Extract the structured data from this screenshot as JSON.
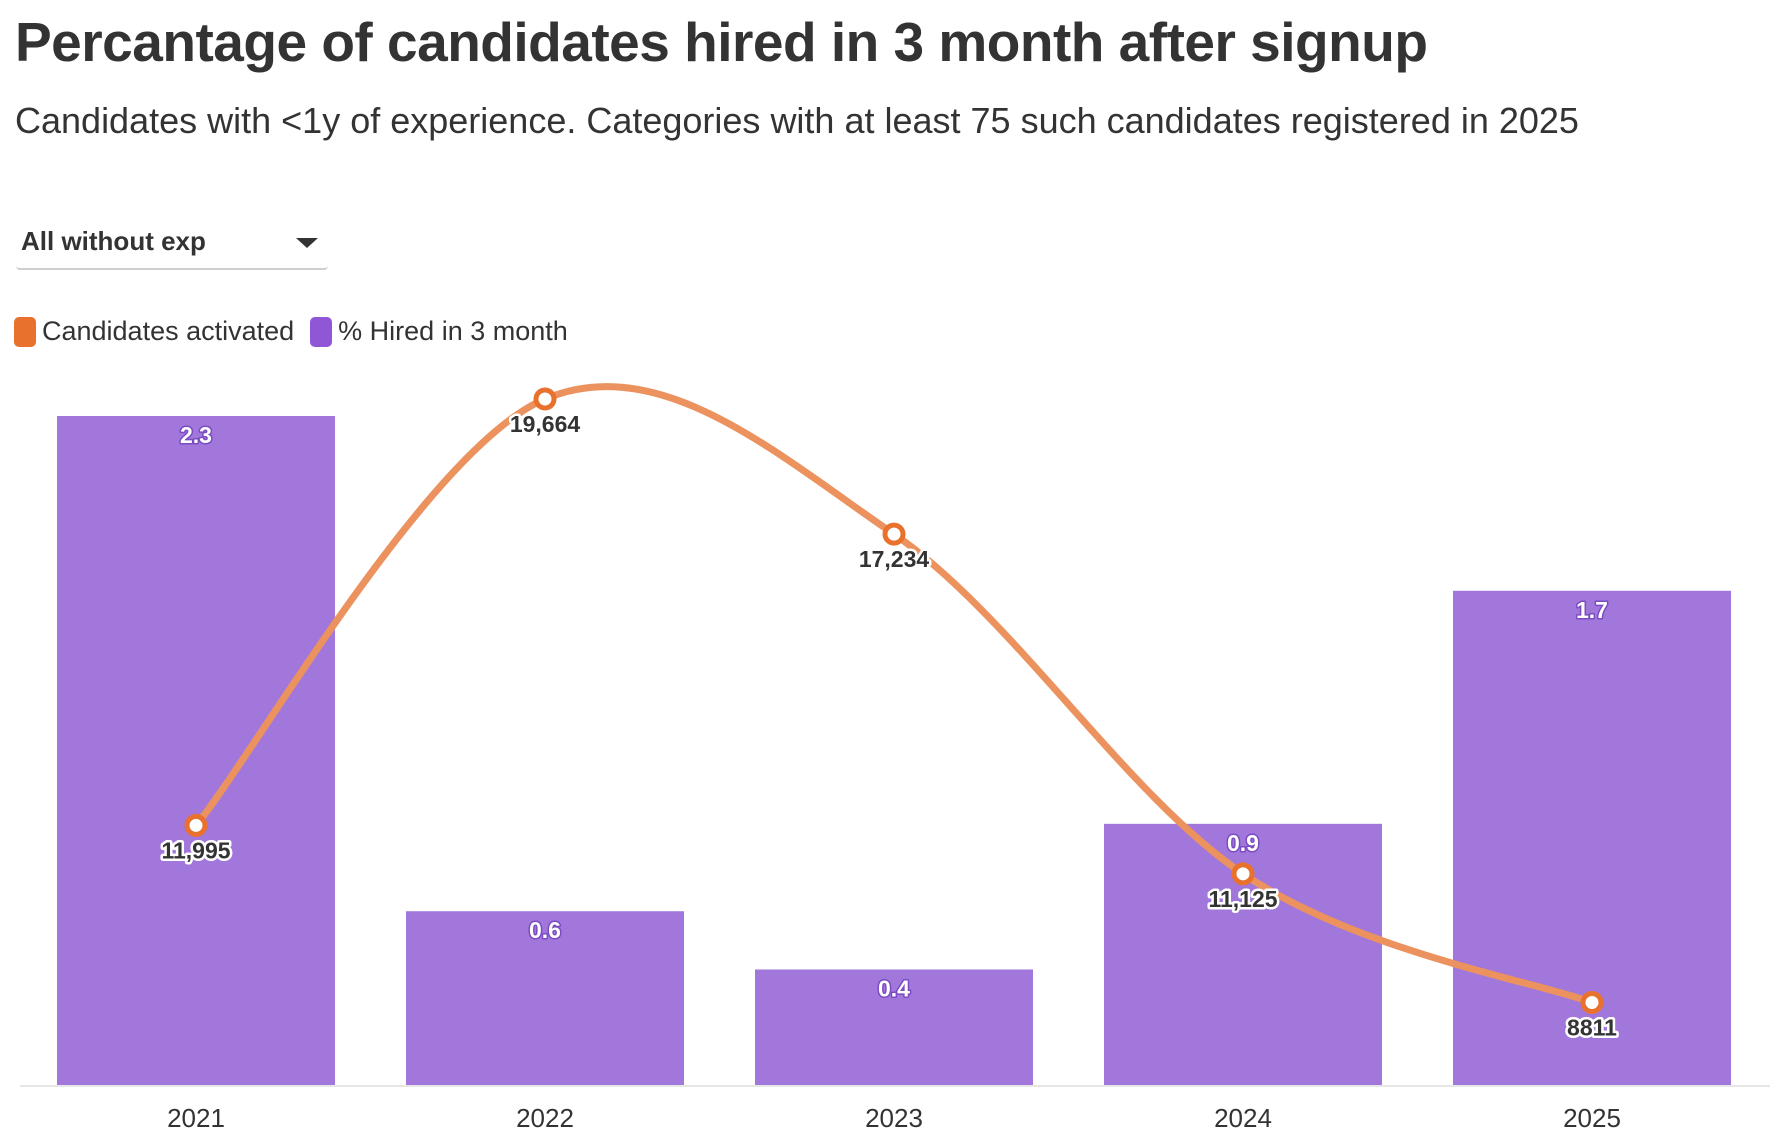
{
  "title": "Percantage of candidates hired in 3 month after signup",
  "subtitle": "Candidates with <1y of experience. Categories with at least 75 such candidates registered in 2025",
  "dropdown": {
    "selected": "All without exp"
  },
  "colors": {
    "bar": "#a277dc",
    "line": "#ec925e",
    "line_marker": "#e8722d",
    "axis": "#e6e6e6",
    "text": "#333333"
  },
  "chart_data": {
    "type": "bar",
    "categories": [
      "2021",
      "2022",
      "2023",
      "2024",
      "2025"
    ],
    "series": [
      {
        "name": "% Hired in 3 month",
        "type": "bar",
        "axis": "left",
        "values": [
          2.3,
          0.6,
          0.4,
          0.9,
          1.7
        ],
        "labels": [
          "2.3",
          "0.6",
          "0.4",
          "0.9",
          "1.7"
        ]
      },
      {
        "name": "Candidates activated",
        "type": "line",
        "smooth": true,
        "axis": "right",
        "values": [
          11995,
          19664,
          17234,
          11125,
          8811
        ],
        "labels": [
          "11,995",
          "19,664",
          "17,234",
          "11,125",
          "8811"
        ]
      }
    ],
    "y_left_range": [
      0,
      2.3
    ],
    "y_right_range": [
      4000,
      19664
    ],
    "legend_placement": "top-left",
    "grid": false
  }
}
